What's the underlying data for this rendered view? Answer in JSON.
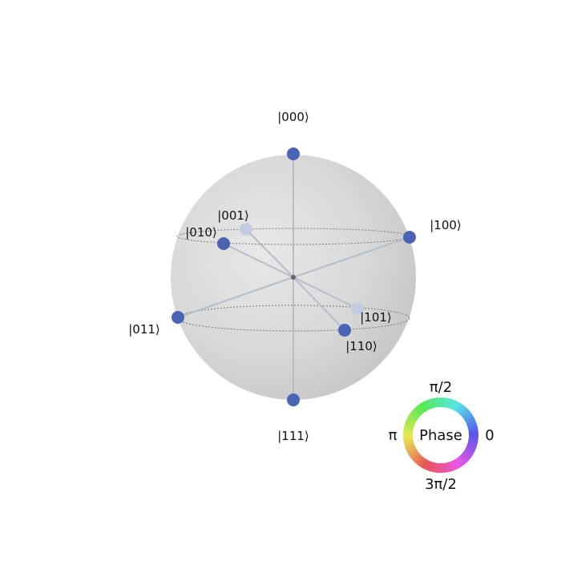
{
  "figure": {
    "type": "qsphere",
    "states": [
      {
        "label": "|000⟩",
        "color": "#4a63b3",
        "highlight": false
      },
      {
        "label": "|001⟩",
        "color": "#c4cbe0",
        "highlight": true
      },
      {
        "label": "|010⟩",
        "color": "#4a63b3",
        "highlight": false
      },
      {
        "label": "|011⟩",
        "color": "#4a63b3",
        "highlight": false
      },
      {
        "label": "|100⟩",
        "color": "#4a63b3",
        "highlight": false
      },
      {
        "label": "|101⟩",
        "color": "#c4cbe0",
        "highlight": true
      },
      {
        "label": "|110⟩",
        "color": "#4a63b3",
        "highlight": false
      },
      {
        "label": "|111⟩",
        "color": "#4a63b3",
        "highlight": false
      }
    ]
  },
  "phase_wheel": {
    "center_label": "Phase",
    "label_0": "0",
    "label_pi_over_2": "π/2",
    "label_pi": "π",
    "label_3pi_over_2": "3π/2"
  },
  "colors": {
    "sphere_light": "#ececec",
    "sphere_dark": "#c7c7c7",
    "line": "#b7bcc9",
    "dashed": "#7a7a7a",
    "center_dot": "#666666"
  }
}
